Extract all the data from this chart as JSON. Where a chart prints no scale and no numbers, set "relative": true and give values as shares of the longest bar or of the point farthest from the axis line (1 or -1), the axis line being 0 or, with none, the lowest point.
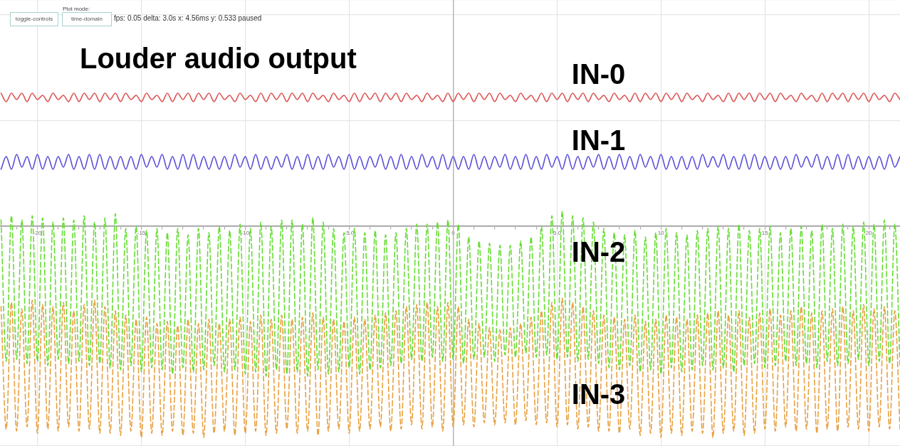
{
  "chart_data": {
    "type": "line",
    "title": "Louder audio output",
    "annotations": [
      "Plot mode:",
      "toggle-controls",
      "time-domain",
      "fps: 0.05 delta: 3.0s x: 4.56ms y: 0.533 paused"
    ],
    "relative": true,
    "grid": true,
    "marker": "none",
    "xlim": [
      -21.8,
      21.5
    ],
    "xticks": [
      {
        "value": -21,
        "label": null
      },
      -20,
      {
        "value": -19,
        "label": null
      },
      {
        "value": -18,
        "label": null
      },
      {
        "value": -17,
        "label": null
      },
      {
        "value": -16,
        "label": null
      },
      -15,
      {
        "value": -14,
        "label": null
      },
      {
        "value": -13,
        "label": null
      },
      {
        "value": -12,
        "label": null
      },
      {
        "value": -11,
        "label": null
      },
      -10,
      {
        "value": -9,
        "label": null
      },
      {
        "value": -8,
        "label": null
      },
      {
        "value": -7,
        "label": null
      },
      {
        "value": -6,
        "label": null
      },
      {
        "value": -5,
        "label": "-5.0"
      },
      {
        "value": -4,
        "label": null
      },
      {
        "value": -3,
        "label": null
      },
      {
        "value": -2,
        "label": null
      },
      {
        "value": -1,
        "label": null
      },
      0,
      {
        "value": 1,
        "label": null
      },
      {
        "value": 2,
        "label": null
      },
      {
        "value": 3,
        "label": null
      },
      {
        "value": 4,
        "label": null
      },
      {
        "value": 5,
        "label": "5.0"
      },
      {
        "value": 6,
        "label": null
      },
      {
        "value": 7,
        "label": null
      },
      {
        "value": 8,
        "label": null
      },
      {
        "value": 9,
        "label": null
      },
      10,
      {
        "value": 11,
        "label": null
      },
      {
        "value": 12,
        "label": null
      },
      {
        "value": 13,
        "label": null
      },
      {
        "value": 14,
        "label": null
      },
      15,
      {
        "value": 16,
        "label": null
      },
      {
        "value": 17,
        "label": null
      },
      {
        "value": 18,
        "label": null
      },
      {
        "value": 19,
        "label": null
      },
      20,
      {
        "value": 21,
        "label": null
      }
    ],
    "x": [
      -21.75,
      -21.5,
      -21.25,
      -21,
      -20.75,
      -20.5,
      -20.25,
      -20,
      -19.75,
      -19.5,
      -19.25,
      -19,
      -18.75,
      -18.5,
      -18.25,
      -18,
      -17.75,
      -17.5,
      -17.25,
      -17,
      -16.75,
      -16.5,
      -16.25,
      -16,
      -15.75,
      -15.5,
      -15.25,
      -15,
      -14.75,
      -14.5,
      -14.25,
      -14,
      -13.75,
      -13.5,
      -13.25,
      -13,
      -12.75,
      -12.5,
      -12.25,
      -12,
      -11.75,
      -11.5,
      -11.25,
      -11,
      -10.75,
      -10.5,
      -10.25,
      -10,
      -9.75,
      -9.5,
      -9.25,
      -9,
      -8.75,
      -8.5,
      -8.25,
      -8,
      -7.75,
      -7.5,
      -7.25,
      -7,
      -6.75,
      -6.5,
      -6.25,
      -6,
      -5.75,
      -5.5,
      -5.25,
      -5,
      -4.75,
      -4.5,
      -4.25,
      -4,
      -3.75,
      -3.5,
      -3.25,
      -3,
      -2.75,
      -2.5,
      -2.25,
      -2,
      -1.75,
      -1.5,
      -1.25,
      -1,
      -0.75,
      -0.5,
      -0.25,
      0,
      0.25,
      0.5,
      0.75,
      1,
      1.25,
      1.5,
      1.75,
      2,
      2.25,
      2.5,
      2.75,
      3,
      3.25,
      3.5,
      3.75,
      4,
      4.25,
      4.5,
      4.75,
      5,
      5.25,
      5.5,
      5.75,
      6,
      6.25,
      6.5,
      6.75,
      7,
      7.25,
      7.5,
      7.75,
      8,
      8.25,
      8.5,
      8.75,
      9,
      9.25,
      9.5,
      9.75,
      10,
      10.25,
      10.5,
      10.75,
      11,
      11.25,
      11.5,
      11.75,
      12,
      12.25,
      12.5,
      12.75,
      13,
      13.25,
      13.5,
      13.75,
      14,
      14.25,
      14.5,
      14.75,
      15,
      15.25,
      15.5,
      15.75,
      16,
      16.25,
      16.5,
      16.75,
      17,
      17.25,
      17.5,
      17.75,
      18,
      18.25,
      18.5,
      18.75,
      19,
      19.25,
      19.5,
      19.75,
      20,
      20.25,
      20.5,
      20.75,
      21,
      21.25,
      21.5
    ],
    "series": [
      {
        "name": "IN-0",
        "color": "#dd5555",
        "values": [
          0.63,
          0.59,
          0.63,
          0.6,
          0.63,
          0.59,
          0.63,
          0.6,
          0.62,
          0.59,
          0.63,
          0.6,
          0.62,
          0.59,
          0.63,
          0.59,
          0.63,
          0.6,
          0.63,
          0.59,
          0.63,
          0.6,
          0.63,
          0.59,
          0.63,
          0.6,
          0.62,
          0.59,
          0.63,
          0.6,
          0.62,
          0.59,
          0.63,
          0.59,
          0.63,
          0.6,
          0.63,
          0.59,
          0.63,
          0.6,
          0.63,
          0.59,
          0.63,
          0.6,
          0.62,
          0.59,
          0.63,
          0.6,
          0.62,
          0.59,
          0.63,
          0.59,
          0.63,
          0.6,
          0.63,
          0.59,
          0.63,
          0.6,
          0.63,
          0.59,
          0.63,
          0.6,
          0.62,
          0.59,
          0.63,
          0.6,
          0.62,
          0.59,
          0.63,
          0.59,
          0.63,
          0.6,
          0.63,
          0.59,
          0.63,
          0.6,
          0.63,
          0.59,
          0.63,
          0.6,
          0.62,
          0.59,
          0.63,
          0.6,
          0.62,
          0.59,
          0.63,
          0.59,
          0.63,
          0.6,
          0.63,
          0.59,
          0.63,
          0.6,
          0.63,
          0.59,
          0.63,
          0.6,
          0.62,
          0.59,
          0.63,
          0.6,
          0.62,
          0.59,
          0.63,
          0.59,
          0.63,
          0.6,
          0.63,
          0.59,
          0.63,
          0.6,
          0.63,
          0.59,
          0.63,
          0.6,
          0.62,
          0.59,
          0.63,
          0.6,
          0.62,
          0.59,
          0.63,
          0.59,
          0.63,
          0.6,
          0.63,
          0.59,
          0.63,
          0.6,
          0.63,
          0.59,
          0.63,
          0.6,
          0.62,
          0.59,
          0.63,
          0.6,
          0.62,
          0.59,
          0.63,
          0.59,
          0.63,
          0.6,
          0.63,
          0.59,
          0.63,
          0.6,
          0.63,
          0.59,
          0.63,
          0.6,
          0.62,
          0.59,
          0.63,
          0.6,
          0.62,
          0.59,
          0.63,
          0.59,
          0.63,
          0.6,
          0.63,
          0.59,
          0.63,
          0.6,
          0.63,
          0.59,
          0.63,
          0.6,
          0.62,
          0.59,
          0.63,
          0.6
        ]
      },
      {
        "name": "IN-1",
        "color": "#5a4fd8",
        "values": [
          0.27,
          0.33,
          0.27,
          0.34,
          0.28,
          0.33,
          0.27,
          0.34,
          0.27,
          0.33,
          0.27,
          0.33,
          0.28,
          0.34,
          0.27,
          0.33,
          0.27,
          0.34,
          0.27,
          0.34,
          0.27,
          0.33,
          0.27,
          0.33,
          0.27,
          0.33,
          0.27,
          0.34,
          0.28,
          0.33,
          0.28,
          0.34,
          0.27,
          0.33,
          0.27,
          0.34,
          0.27,
          0.34,
          0.27,
          0.33,
          0.27,
          0.33,
          0.27,
          0.33,
          0.27,
          0.34,
          0.28,
          0.33,
          0.27,
          0.34,
          0.27,
          0.33,
          0.27,
          0.33,
          0.28,
          0.34,
          0.27,
          0.33,
          0.27,
          0.34,
          0.27,
          0.33,
          0.27,
          0.34,
          0.28,
          0.33,
          0.27,
          0.34,
          0.27,
          0.33,
          0.27,
          0.33,
          0.28,
          0.34,
          0.27,
          0.33,
          0.27,
          0.34,
          0.27,
          0.33,
          0.27,
          0.34,
          0.28,
          0.33,
          0.27,
          0.34,
          0.27,
          0.33,
          0.27,
          0.33,
          0.27,
          0.34,
          0.27,
          0.33,
          0.27,
          0.33,
          0.28,
          0.34,
          0.27,
          0.33,
          0.27,
          0.34,
          0.27,
          0.33,
          0.27,
          0.34,
          0.28,
          0.33,
          0.27,
          0.34,
          0.27,
          0.33,
          0.27,
          0.33,
          0.28,
          0.34,
          0.27,
          0.33,
          0.27,
          0.34,
          0.27,
          0.33,
          0.27,
          0.34,
          0.28,
          0.33,
          0.27,
          0.34,
          0.27,
          0.33,
          0.27,
          0.33,
          0.27,
          0.33,
          0.27,
          0.34,
          0.28,
          0.33,
          0.28,
          0.34,
          0.27,
          0.33,
          0.27,
          0.34,
          0.27,
          0.34,
          0.27,
          0.33,
          0.27,
          0.33,
          0.27,
          0.33,
          0.27,
          0.34,
          0.28,
          0.33,
          0.28,
          0.34,
          0.27,
          0.33,
          0.27,
          0.34,
          0.27,
          0.34,
          0.27,
          0.33,
          0.27,
          0.33,
          0.27,
          0.33,
          0.27,
          0.34,
          0.28,
          0.33
        ]
      },
      {
        "name": "IN-2",
        "color": "#66dd33",
        "line_style": "dashed",
        "values": [
          0.03,
          -0.64,
          0.05,
          -0.63,
          0.03,
          -0.65,
          0.05,
          -0.64,
          0.04,
          -0.66,
          0.02,
          -0.63,
          0.04,
          -0.65,
          0.03,
          -0.64,
          0.05,
          -0.66,
          0.02,
          -0.65,
          0.04,
          -0.67,
          0.06,
          -0.68,
          -0.01,
          -0.66,
          0,
          -0.69,
          -0.02,
          -0.67,
          -0.01,
          -0.68,
          -0.03,
          -0.7,
          -0.01,
          -0.67,
          -0.04,
          -0.69,
          -0.01,
          -0.68,
          -0.03,
          -0.66,
          0,
          -0.69,
          -0.02,
          -0.68,
          0.01,
          -0.7,
          -0.01,
          -0.69,
          0.02,
          -0.71,
          0,
          -0.68,
          0.03,
          -0.7,
          0.03,
          -0.69,
          0.01,
          -0.71,
          0.04,
          -0.68,
          0.02,
          -0.7,
          -0.01,
          -0.69,
          -0.03,
          -0.67,
          -0.01,
          -0.7,
          -0.03,
          -0.68,
          -0.02,
          -0.67,
          -0.04,
          -0.66,
          -0.03,
          -0.65,
          -0.01,
          -0.63,
          0.01,
          -0.64,
          0.01,
          -0.62,
          0.02,
          -0.64,
          0.03,
          -0.63,
          0.01,
          -0.65,
          -0.05,
          -0.63,
          -0.07,
          -0.62,
          -0.08,
          -0.64,
          -0.09,
          -0.61,
          -0.09,
          -0.62,
          -0.07,
          -0.6,
          -0.05,
          -0.62,
          0,
          -0.61,
          0.05,
          -0.63,
          0.07,
          -0.62,
          0.05,
          -0.64,
          0.04,
          -0.63,
          0.02,
          -0.65,
          -0.01,
          -0.67,
          -0.03,
          -0.68,
          -0.04,
          -0.66,
          -0.02,
          -0.69,
          -0.05,
          -0.68,
          -0.03,
          -0.7,
          -0.01,
          -0.67,
          -0.03,
          -0.69,
          -0.04,
          -0.68,
          -0.02,
          -0.66,
          -0.01,
          -0.68,
          0,
          -0.67,
          -0.01,
          -0.69,
          0.01,
          -0.66,
          -0.02,
          -0.65,
          -0.01,
          -0.67,
          0,
          -0.66,
          -0.03,
          -0.64,
          -0.01,
          -0.66,
          0,
          -0.65,
          -0.02,
          -0.67,
          0.01,
          -0.64,
          -0.01,
          -0.66,
          0.01,
          -0.65,
          0,
          -0.63,
          0.02,
          -0.66,
          0.01,
          -0.64,
          0.03,
          -0.65,
          0.01,
          -0.66
        ]
      },
      {
        "name": "IN-3",
        "color": "#e8a040",
        "line_style": "dashed",
        "values": [
          -0.38,
          -0.96,
          -0.36,
          -0.97,
          -0.39,
          -0.95,
          -0.35,
          -0.98,
          -0.37,
          -0.96,
          -0.38,
          -0.97,
          -0.36,
          -0.95,
          -0.4,
          -0.97,
          -0.37,
          -0.96,
          -0.35,
          -0.98,
          -0.38,
          -0.98,
          -0.4,
          -0.99,
          -0.42,
          -0.97,
          -0.44,
          -1,
          -0.43,
          -0.98,
          -0.46,
          -0.99,
          -0.45,
          -0.97,
          -0.47,
          -0.99,
          -0.44,
          -0.98,
          -0.46,
          -1,
          -0.44,
          -0.98,
          -0.46,
          -0.97,
          -0.44,
          -0.99,
          -0.43,
          -0.98,
          -0.45,
          -0.97,
          -0.42,
          -0.99,
          -0.44,
          -0.98,
          -0.42,
          -0.96,
          -0.44,
          -0.98,
          -0.43,
          -0.97,
          -0.41,
          -0.99,
          -0.43,
          -0.97,
          -0.44,
          -0.96,
          -0.45,
          -0.98,
          -0.43,
          -0.97,
          -0.44,
          -0.96,
          -0.42,
          -0.95,
          -0.41,
          -0.97,
          -0.4,
          -0.96,
          -0.38,
          -0.94,
          -0.37,
          -0.96,
          -0.36,
          -0.95,
          -0.38,
          -0.97,
          -0.36,
          -0.95,
          -0.38,
          -0.94,
          -0.44,
          -0.95,
          -0.46,
          -0.93,
          -0.48,
          -0.94,
          -0.49,
          -0.93,
          -0.48,
          -0.94,
          -0.46,
          -0.92,
          -0.43,
          -0.94,
          -0.4,
          -0.93,
          -0.36,
          -0.95,
          -0.34,
          -0.94,
          -0.36,
          -0.96,
          -0.38,
          -0.95,
          -0.4,
          -0.97,
          -0.42,
          -0.97,
          -0.43,
          -0.98,
          -0.44,
          -0.96,
          -0.42,
          -0.99,
          -0.45,
          -0.98,
          -0.44,
          -1,
          -0.42,
          -0.98,
          -0.43,
          -0.99,
          -0.44,
          -0.97,
          -0.42,
          -0.98,
          -0.41,
          -1,
          -0.4,
          -0.98,
          -0.42,
          -0.97,
          -0.4,
          -0.99,
          -0.43,
          -0.98,
          -0.41,
          -0.96,
          -0.39,
          -0.97,
          -0.42,
          -0.95,
          -0.4,
          -0.97,
          -0.38,
          -0.96,
          -0.41,
          -0.98,
          -0.4,
          -0.96,
          -0.39,
          -0.97,
          -0.38,
          -0.95,
          -0.4,
          -0.96,
          -0.37,
          -0.97,
          -0.39,
          -0.95,
          -0.38,
          -0.96,
          -0.4,
          -0.96
        ]
      }
    ]
  }
}
